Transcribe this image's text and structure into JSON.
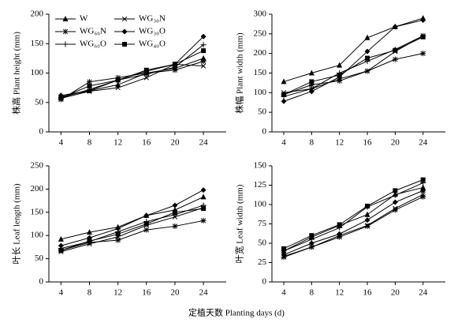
{
  "chart_data": [
    {
      "type": "line",
      "y_label": "株高 Plant height (mm)",
      "legend": "upper left",
      "x": [
        4,
        8,
        12,
        16,
        20,
        24
      ],
      "xlim": [
        2.3,
        27.2
      ],
      "xticks": [
        4,
        8,
        12,
        16,
        20,
        24
      ],
      "ylim": [
        0,
        200
      ],
      "yticks": [
        0,
        50,
        100,
        150,
        200
      ],
      "series": [
        {
          "name": "W",
          "marker": "triangle",
          "color": "#000000",
          "values": [
            60,
            70,
            80,
            100,
            108,
            125
          ]
        },
        {
          "name": "WG₆₀N",
          "marker": "asterisk",
          "color": "#000000",
          "values": [
            55,
            85,
            92,
            100,
            105,
            120
          ]
        },
        {
          "name": "WG₆₀O",
          "marker": "plus",
          "color": "#000000",
          "values": [
            58,
            72,
            88,
            98,
            110,
            148
          ]
        },
        {
          "name": "WG₃₀N",
          "marker": "cross",
          "color": "#000000",
          "values": [
            57,
            69,
            75,
            92,
            115,
            112
          ]
        },
        {
          "name": "WG₃₀O",
          "marker": "diamond",
          "color": "#000000",
          "values": [
            62,
            70,
            88,
            103,
            115,
            162
          ]
        },
        {
          "name": "WG₄₀O",
          "marker": "square",
          "color": "#000000",
          "values": [
            58,
            78,
            88,
            105,
            115,
            138
          ]
        }
      ]
    },
    {
      "type": "line",
      "y_label": "株幅 Plant width (mm)",
      "x": [
        4,
        8,
        12,
        16,
        20,
        24
      ],
      "xlim": [
        2.3,
        27.2
      ],
      "xticks": [
        4,
        8,
        12,
        16,
        20,
        24
      ],
      "ylim": [
        0,
        300
      ],
      "yticks": [
        0,
        50,
        100,
        150,
        200,
        250,
        300
      ],
      "series": [
        {
          "values": [
            128,
            150,
            170,
            240,
            268,
            290
          ]
        },
        {
          "values": [
            95,
            120,
            130,
            155,
            185,
            200
          ]
        },
        {
          "values": [
            90,
            110,
            150,
            180,
            210,
            245
          ]
        },
        {
          "values": [
            100,
            110,
            135,
            155,
            205,
            245
          ]
        },
        {
          "values": [
            78,
            103,
            140,
            205,
            268,
            285
          ]
        },
        {
          "values": [
            95,
            128,
            145,
            188,
            208,
            242
          ]
        }
      ]
    },
    {
      "type": "line",
      "y_label": "叶长 Leaf length (mm)",
      "x": [
        4,
        8,
        12,
        16,
        20,
        24
      ],
      "xlim": [
        2.3,
        27.2
      ],
      "xticks": [
        4,
        8,
        12,
        16,
        20,
        24
      ],
      "ylim": [
        0,
        250
      ],
      "yticks": [
        0,
        50,
        100,
        150,
        200,
        250
      ],
      "series": [
        {
          "values": [
            92,
            107,
            118,
            143,
            155,
            183
          ]
        },
        {
          "values": [
            68,
            85,
            90,
            112,
            120,
            132
          ]
        },
        {
          "values": [
            72,
            87,
            108,
            130,
            145,
            165
          ]
        },
        {
          "values": [
            65,
            82,
            97,
            122,
            140,
            160
          ]
        },
        {
          "values": [
            78,
            95,
            115,
            143,
            165,
            198
          ]
        },
        {
          "values": [
            68,
            88,
            103,
            125,
            150,
            158
          ]
        }
      ]
    },
    {
      "type": "line",
      "y_label": "叶宽 Leaf width (mm)",
      "x": [
        4,
        8,
        12,
        16,
        20,
        24
      ],
      "xlim": [
        2.3,
        27.2
      ],
      "xticks": [
        4,
        8,
        12,
        16,
        20,
        24
      ],
      "ylim": [
        0,
        150
      ],
      "yticks": [
        0,
        25,
        50,
        75,
        100,
        125,
        150
      ],
      "series": [
        {
          "values": [
            40,
            58,
            73,
            87,
            113,
            122
          ]
        },
        {
          "values": [
            32,
            45,
            58,
            72,
            93,
            110
          ]
        },
        {
          "values": [
            40,
            55,
            70,
            97,
            112,
            128
          ]
        },
        {
          "values": [
            33,
            45,
            60,
            73,
            95,
            113
          ]
        },
        {
          "values": [
            35,
            50,
            62,
            80,
            103,
            118
          ]
        },
        {
          "values": [
            43,
            60,
            74,
            98,
            118,
            132
          ]
        }
      ]
    }
  ],
  "x_label": "定植天数 Planting days (d)"
}
